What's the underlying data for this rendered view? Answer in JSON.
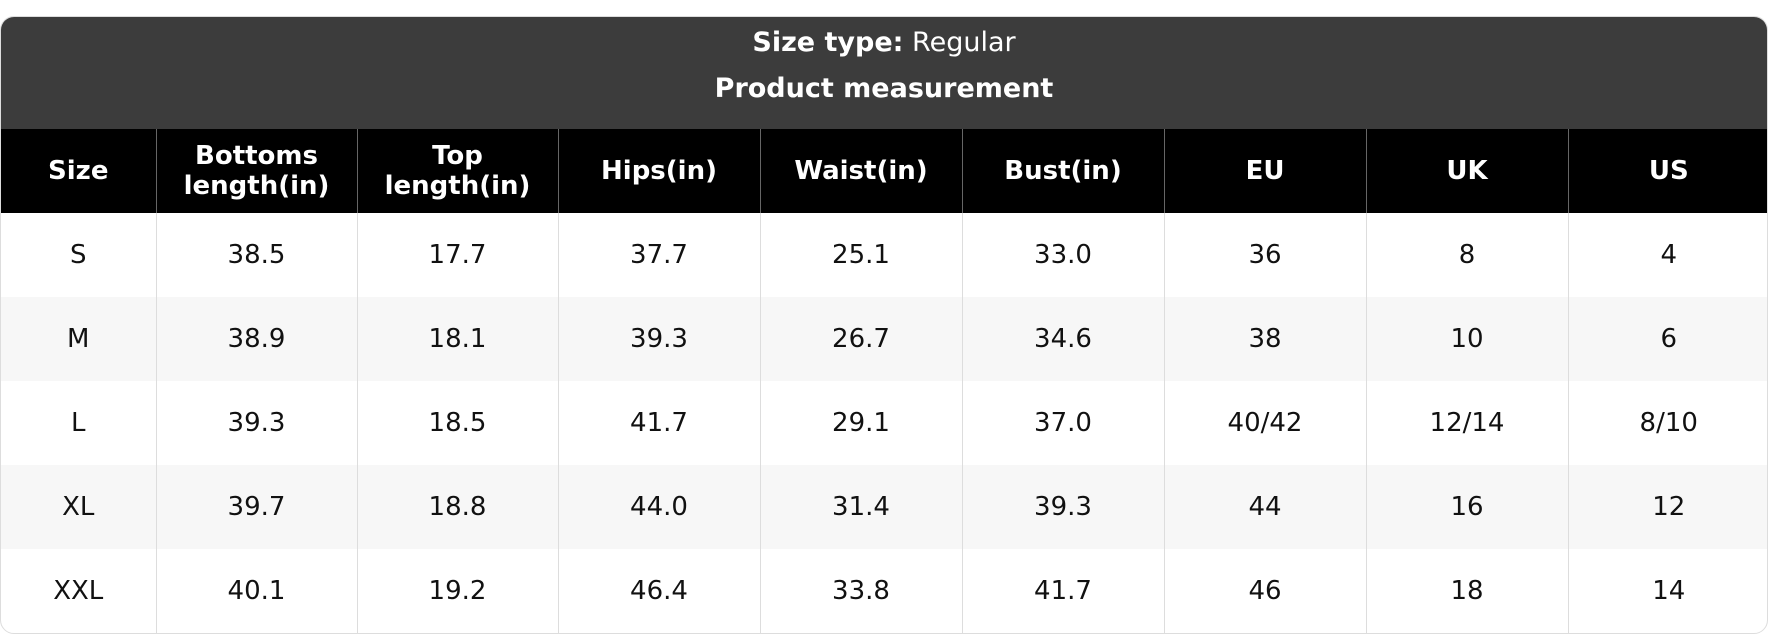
{
  "header": {
    "size_type_label": "Size type:",
    "size_type_value": "Regular",
    "title": "Product measurement"
  },
  "table": {
    "columns": [
      "Size",
      "Bottoms length(in)",
      "Top length(in)",
      "Hips(in)",
      "Waist(in)",
      "Bust(in)",
      "EU",
      "UK",
      "US"
    ],
    "rows": [
      [
        "S",
        "38.5",
        "17.7",
        "37.7",
        "25.1",
        "33.0",
        "36",
        "8",
        "4"
      ],
      [
        "M",
        "38.9",
        "18.1",
        "39.3",
        "26.7",
        "34.6",
        "38",
        "10",
        "6"
      ],
      [
        "L",
        "39.3",
        "18.5",
        "41.7",
        "29.1",
        "37.0",
        "40/42",
        "12/14",
        "8/10"
      ],
      [
        "XL",
        "39.7",
        "18.8",
        "44.0",
        "31.4",
        "39.3",
        "44",
        "16",
        "12"
      ],
      [
        "XXL",
        "40.1",
        "19.2",
        "46.4",
        "33.8",
        "41.7",
        "46",
        "18",
        "14"
      ]
    ]
  }
}
